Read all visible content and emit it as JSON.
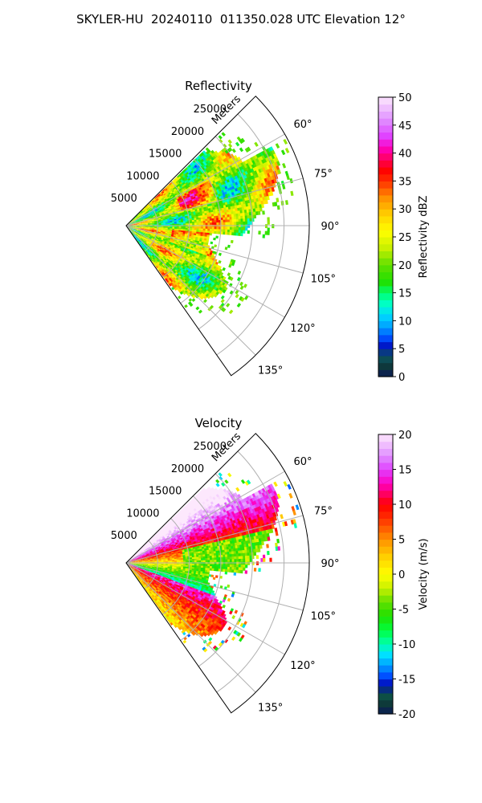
{
  "figure": {
    "suptitle": "SKYLER-HU  20240110  011350.028 UTC Elevation 12°"
  },
  "chart_data": [
    {
      "type": "heatmap",
      "projection": "polar-sector",
      "title": "Reflectivity",
      "range_label": "Meters",
      "range_ticks": [
        5000,
        10000,
        15000,
        20000,
        25000
      ],
      "range_max": 29000,
      "azimuth_ticks_deg": [
        60,
        75,
        90,
        105,
        120,
        135
      ],
      "azimuth_tick_labels": [
        "60°",
        "75°",
        "90°",
        "105°",
        "120°",
        "135°"
      ],
      "azimuth_range_deg": [
        45,
        145
      ],
      "grid": true,
      "colorbar": {
        "label": "Reflectivity dBZ",
        "min": 0,
        "max": 50,
        "ticks": [
          0,
          5,
          10,
          15,
          20,
          25,
          30,
          35,
          40,
          45,
          50
        ],
        "stops": [
          {
            "v": 0,
            "color": "#0b1a55"
          },
          {
            "v": 2,
            "color": "#0e3a3a"
          },
          {
            "v": 4,
            "color": "#0d5a6a"
          },
          {
            "v": 5,
            "color": "#0000b0"
          },
          {
            "v": 7,
            "color": "#0050ff"
          },
          {
            "v": 9,
            "color": "#00a0ff"
          },
          {
            "v": 11,
            "color": "#00d8ff"
          },
          {
            "v": 13,
            "color": "#00ffc8"
          },
          {
            "v": 15,
            "color": "#00ff70"
          },
          {
            "v": 17,
            "color": "#20e000"
          },
          {
            "v": 20,
            "color": "#60e000"
          },
          {
            "v": 23,
            "color": "#c8f000"
          },
          {
            "v": 26,
            "color": "#ffff00"
          },
          {
            "v": 29,
            "color": "#ffd000"
          },
          {
            "v": 32,
            "color": "#ff9000"
          },
          {
            "v": 35,
            "color": "#ff3000"
          },
          {
            "v": 37,
            "color": "#ff0000"
          },
          {
            "v": 39,
            "color": "#ff0060"
          },
          {
            "v": 41,
            "color": "#ff00c0"
          },
          {
            "v": 43,
            "color": "#e040ff"
          },
          {
            "v": 46,
            "color": "#e090ff"
          },
          {
            "v": 50,
            "color": "#fde8fd"
          }
        ]
      }
    },
    {
      "type": "heatmap",
      "projection": "polar-sector",
      "title": "Velocity",
      "range_label": "Meters",
      "range_ticks": [
        5000,
        10000,
        15000,
        20000,
        25000
      ],
      "range_max": 29000,
      "azimuth_ticks_deg": [
        60,
        75,
        90,
        105,
        120,
        135
      ],
      "azimuth_tick_labels": [
        "60°",
        "75°",
        "90°",
        "105°",
        "120°",
        "135°"
      ],
      "azimuth_range_deg": [
        45,
        145
      ],
      "grid": true,
      "colorbar": {
        "label": "Velocity (m/s)",
        "min": -20,
        "max": 20,
        "ticks": [
          -20,
          -15,
          -10,
          -5,
          0,
          5,
          10,
          15,
          20
        ],
        "stops": [
          {
            "v": -20,
            "color": "#0b1a55"
          },
          {
            "v": -18.5,
            "color": "#0e3a3a"
          },
          {
            "v": -17,
            "color": "#0d5a4a"
          },
          {
            "v": -16,
            "color": "#0000b0"
          },
          {
            "v": -14.5,
            "color": "#0050ff"
          },
          {
            "v": -13,
            "color": "#00a0ff"
          },
          {
            "v": -11.5,
            "color": "#00e0ff"
          },
          {
            "v": -10,
            "color": "#00ffb0"
          },
          {
            "v": -8,
            "color": "#00ff40"
          },
          {
            "v": -6,
            "color": "#20e000"
          },
          {
            "v": -4,
            "color": "#60e000"
          },
          {
            "v": -2,
            "color": "#c8f000"
          },
          {
            "v": 0,
            "color": "#ffff00"
          },
          {
            "v": 2.5,
            "color": "#ffd000"
          },
          {
            "v": 5,
            "color": "#ff9000"
          },
          {
            "v": 8,
            "color": "#ff3000"
          },
          {
            "v": 10,
            "color": "#ff0000"
          },
          {
            "v": 11.5,
            "color": "#ff0060"
          },
          {
            "v": 13,
            "color": "#ff00c0"
          },
          {
            "v": 15,
            "color": "#e040ff"
          },
          {
            "v": 17,
            "color": "#e090ff"
          },
          {
            "v": 20,
            "color": "#fde8fd"
          }
        ]
      }
    }
  ]
}
